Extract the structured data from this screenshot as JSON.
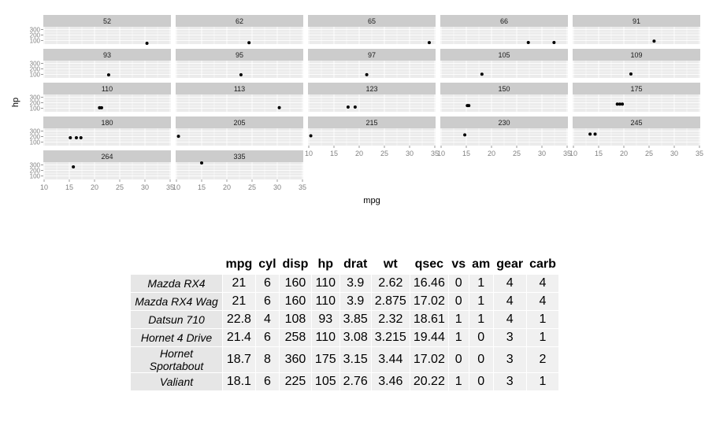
{
  "chart_data": {
    "type": "scatter",
    "facet_by": "hp",
    "xlabel": "mpg",
    "ylabel": "hp",
    "xlim": [
      10,
      35
    ],
    "ylim": [
      52,
      335
    ],
    "x_ticks": [
      "10",
      "15",
      "20",
      "25",
      "30",
      "35"
    ],
    "y_ticks": [
      "100",
      "200",
      "300"
    ],
    "grid": true,
    "panels": [
      {
        "label": "52",
        "points": [
          [
            30.4,
            52
          ]
        ]
      },
      {
        "label": "62",
        "points": [
          [
            24.4,
            62
          ]
        ]
      },
      {
        "label": "65",
        "points": [
          [
            33.9,
            65
          ]
        ]
      },
      {
        "label": "66",
        "points": [
          [
            32.4,
            66
          ],
          [
            27.3,
            66
          ]
        ]
      },
      {
        "label": "91",
        "points": [
          [
            26.0,
            91
          ]
        ]
      },
      {
        "label": "93",
        "points": [
          [
            22.8,
            93
          ]
        ]
      },
      {
        "label": "95",
        "points": [
          [
            22.8,
            95
          ]
        ]
      },
      {
        "label": "97",
        "points": [
          [
            21.5,
            97
          ]
        ]
      },
      {
        "label": "105",
        "points": [
          [
            18.1,
            105
          ]
        ]
      },
      {
        "label": "109",
        "points": [
          [
            21.4,
            109
          ]
        ]
      },
      {
        "label": "110",
        "points": [
          [
            21.0,
            110
          ],
          [
            21.0,
            110
          ],
          [
            21.4,
            110
          ]
        ]
      },
      {
        "label": "113",
        "points": [
          [
            30.4,
            113
          ]
        ]
      },
      {
        "label": "123",
        "points": [
          [
            19.2,
            123
          ],
          [
            17.8,
            123
          ]
        ]
      },
      {
        "label": "150",
        "points": [
          [
            15.5,
            150
          ],
          [
            15.2,
            150
          ]
        ]
      },
      {
        "label": "175",
        "points": [
          [
            18.7,
            175
          ],
          [
            19.2,
            175
          ],
          [
            19.7,
            175
          ]
        ]
      },
      {
        "label": "180",
        "points": [
          [
            16.4,
            180
          ],
          [
            17.3,
            180
          ],
          [
            15.2,
            180
          ]
        ]
      },
      {
        "label": "205",
        "points": [
          [
            10.4,
            205
          ]
        ]
      },
      {
        "label": "215",
        "points": [
          [
            10.4,
            215
          ]
        ]
      },
      {
        "label": "230",
        "points": [
          [
            14.7,
            230
          ]
        ]
      },
      {
        "label": "245",
        "points": [
          [
            14.3,
            245
          ],
          [
            13.3,
            245
          ]
        ]
      },
      {
        "label": "264",
        "points": [
          [
            15.8,
            264
          ]
        ]
      },
      {
        "label": "335",
        "points": [
          [
            15.0,
            335
          ]
        ]
      }
    ]
  },
  "table": {
    "columns": [
      "mpg",
      "cyl",
      "disp",
      "hp",
      "drat",
      "wt",
      "qsec",
      "vs",
      "am",
      "gear",
      "carb"
    ],
    "rows": [
      {
        "name": "Mazda RX4",
        "values": [
          "21",
          "6",
          "160",
          "110",
          "3.9",
          "2.62",
          "16.46",
          "0",
          "1",
          "4",
          "4"
        ]
      },
      {
        "name": "Mazda RX4 Wag",
        "values": [
          "21",
          "6",
          "160",
          "110",
          "3.9",
          "2.875",
          "17.02",
          "0",
          "1",
          "4",
          "4"
        ]
      },
      {
        "name": "Datsun 710",
        "values": [
          "22.8",
          "4",
          "108",
          "93",
          "3.85",
          "2.32",
          "18.61",
          "1",
          "1",
          "4",
          "1"
        ]
      },
      {
        "name": "Hornet 4 Drive",
        "values": [
          "21.4",
          "6",
          "258",
          "110",
          "3.08",
          "3.215",
          "19.44",
          "1",
          "0",
          "3",
          "1"
        ]
      },
      {
        "name": "Hornet Sportabout",
        "values": [
          "18.7",
          "8",
          "360",
          "175",
          "3.15",
          "3.44",
          "17.02",
          "0",
          "0",
          "3",
          "2"
        ]
      },
      {
        "name": "Valiant",
        "values": [
          "18.1",
          "6",
          "225",
          "105",
          "2.76",
          "3.46",
          "20.22",
          "1",
          "0",
          "3",
          "1"
        ]
      }
    ]
  },
  "colors": {
    "panel_bg": "#ebebeb",
    "strip_bg": "#cccccc",
    "grid": "#ffffff",
    "point": "#000000",
    "axis_text": "#7f7f7f"
  }
}
